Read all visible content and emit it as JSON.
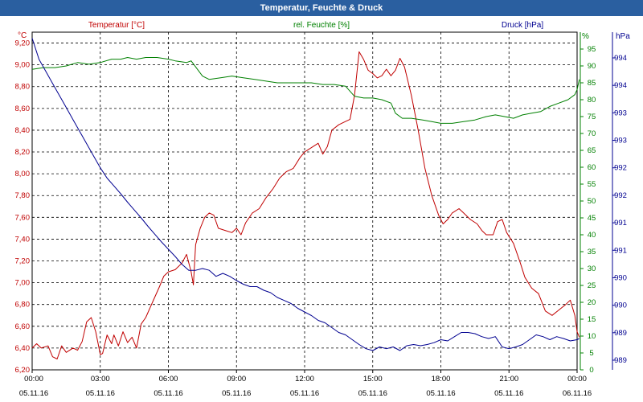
{
  "window": {
    "title": "Temperatur, Feuchte & Druck"
  },
  "colors": {
    "temperature": "#c00000",
    "humidity": "#008000",
    "pressure": "#000090",
    "title_bg": "#2a5fa0",
    "grid": "#000000"
  },
  "chart_data": {
    "type": "line",
    "title": "Temperatur, Feuchte & Druck",
    "x_ticks": [
      {
        "time": "00:00",
        "date": "05.11.16"
      },
      {
        "time": "03:00",
        "date": "05.11.16"
      },
      {
        "time": "06:00",
        "date": "05.11.16"
      },
      {
        "time": "09:00",
        "date": "05.11.16"
      },
      {
        "time": "12:00",
        "date": "05.11.16"
      },
      {
        "time": "15:00",
        "date": "05.11.16"
      },
      {
        "time": "18:00",
        "date": "05.11.16"
      },
      {
        "time": "21:00",
        "date": "05.11.16"
      },
      {
        "time": "00:00",
        "date": "06.11.16"
      }
    ],
    "x_range_hours": [
      0,
      24
    ],
    "axes": {
      "temperature": {
        "label": "Temperatur [°C]",
        "unit": "°C",
        "range": [
          6.2,
          9.3
        ],
        "ticks": [
          "9,20",
          "9,00",
          "8,80",
          "8,60",
          "8,40",
          "8,20",
          "8,00",
          "7,80",
          "7,60",
          "7,40",
          "7,20",
          "7,00",
          "6,80",
          "6,60",
          "6,40",
          "6,20"
        ]
      },
      "humidity": {
        "label": "rel. Feuchte [%]",
        "unit": "%",
        "range": [
          0,
          100
        ],
        "ticks": [
          "95",
          "90",
          "85",
          "80",
          "75",
          "70",
          "65",
          "60",
          "55",
          "50",
          "45",
          "40",
          "35",
          "30",
          "25",
          "20",
          "15",
          "10",
          "5",
          "0"
        ]
      },
      "pressure": {
        "label": "Druck [hPa]",
        "unit": "hPa",
        "ticks": [
          "994",
          "994",
          "993",
          "993",
          "992",
          "992",
          "991",
          "991",
          "990",
          "990",
          "989",
          "989"
        ]
      }
    },
    "grid": true,
    "series": [
      {
        "name": "Temperatur [°C]",
        "axis": "temperature",
        "points": [
          [
            0,
            6.4
          ],
          [
            0.2,
            6.44
          ],
          [
            0.4,
            6.4
          ],
          [
            0.7,
            6.42
          ],
          [
            0.9,
            6.32
          ],
          [
            1.1,
            6.3
          ],
          [
            1.3,
            6.42
          ],
          [
            1.5,
            6.36
          ],
          [
            1.8,
            6.4
          ],
          [
            2.0,
            6.38
          ],
          [
            2.2,
            6.46
          ],
          [
            2.4,
            6.64
          ],
          [
            2.6,
            6.68
          ],
          [
            2.8,
            6.55
          ],
          [
            3.0,
            6.34
          ],
          [
            3.1,
            6.35
          ],
          [
            3.3,
            6.52
          ],
          [
            3.5,
            6.44
          ],
          [
            3.6,
            6.52
          ],
          [
            3.8,
            6.42
          ],
          [
            4.0,
            6.55
          ],
          [
            4.2,
            6.45
          ],
          [
            4.4,
            6.5
          ],
          [
            4.6,
            6.4
          ],
          [
            4.8,
            6.62
          ],
          [
            5.0,
            6.68
          ],
          [
            5.3,
            6.82
          ],
          [
            5.6,
            6.96
          ],
          [
            5.8,
            7.06
          ],
          [
            6.0,
            7.1
          ],
          [
            6.3,
            7.12
          ],
          [
            6.6,
            7.18
          ],
          [
            6.8,
            7.26
          ],
          [
            7.0,
            7.1
          ],
          [
            7.1,
            6.98
          ],
          [
            7.2,
            7.35
          ],
          [
            7.4,
            7.5
          ],
          [
            7.6,
            7.6
          ],
          [
            7.8,
            7.64
          ],
          [
            8.0,
            7.62
          ],
          [
            8.2,
            7.5
          ],
          [
            8.5,
            7.48
          ],
          [
            8.8,
            7.46
          ],
          [
            9.0,
            7.5
          ],
          [
            9.2,
            7.44
          ],
          [
            9.4,
            7.55
          ],
          [
            9.7,
            7.64
          ],
          [
            10.0,
            7.68
          ],
          [
            10.3,
            7.78
          ],
          [
            10.6,
            7.86
          ],
          [
            10.9,
            7.96
          ],
          [
            11.2,
            8.02
          ],
          [
            11.5,
            8.05
          ],
          [
            11.8,
            8.15
          ],
          [
            12.0,
            8.2
          ],
          [
            12.3,
            8.24
          ],
          [
            12.6,
            8.28
          ],
          [
            12.8,
            8.18
          ],
          [
            13.0,
            8.25
          ],
          [
            13.2,
            8.4
          ],
          [
            13.5,
            8.45
          ],
          [
            13.8,
            8.48
          ],
          [
            14.0,
            8.5
          ],
          [
            14.2,
            8.72
          ],
          [
            14.4,
            9.12
          ],
          [
            14.6,
            9.05
          ],
          [
            14.8,
            8.95
          ],
          [
            15.0,
            8.92
          ],
          [
            15.2,
            8.88
          ],
          [
            15.4,
            8.9
          ],
          [
            15.6,
            8.96
          ],
          [
            15.8,
            8.9
          ],
          [
            16.0,
            8.95
          ],
          [
            16.2,
            9.06
          ],
          [
            16.4,
            8.98
          ],
          [
            16.7,
            8.72
          ],
          [
            17.0,
            8.4
          ],
          [
            17.3,
            8.05
          ],
          [
            17.6,
            7.8
          ],
          [
            17.9,
            7.62
          ],
          [
            18.1,
            7.54
          ],
          [
            18.3,
            7.58
          ],
          [
            18.5,
            7.64
          ],
          [
            18.8,
            7.68
          ],
          [
            19.0,
            7.64
          ],
          [
            19.3,
            7.58
          ],
          [
            19.6,
            7.54
          ],
          [
            19.8,
            7.48
          ],
          [
            20.0,
            7.44
          ],
          [
            20.3,
            7.44
          ],
          [
            20.5,
            7.56
          ],
          [
            20.7,
            7.58
          ],
          [
            20.9,
            7.46
          ],
          [
            21.2,
            7.36
          ],
          [
            21.5,
            7.18
          ],
          [
            21.7,
            7.05
          ],
          [
            22.0,
            6.95
          ],
          [
            22.3,
            6.9
          ],
          [
            22.6,
            6.74
          ],
          [
            22.9,
            6.7
          ],
          [
            23.2,
            6.75
          ],
          [
            23.5,
            6.8
          ],
          [
            23.7,
            6.84
          ],
          [
            23.9,
            6.7
          ],
          [
            24.0,
            6.55
          ],
          [
            24.1,
            6.5
          ]
        ]
      },
      {
        "name": "rel. Feuchte [%]",
        "axis": "humidity",
        "points": [
          [
            0,
            89
          ],
          [
            0.5,
            89.5
          ],
          [
            1.0,
            89.5
          ],
          [
            1.5,
            90
          ],
          [
            2.0,
            91
          ],
          [
            2.5,
            90.5
          ],
          [
            3.0,
            91
          ],
          [
            3.5,
            92
          ],
          [
            3.9,
            92
          ],
          [
            4.2,
            92.5
          ],
          [
            4.6,
            92
          ],
          [
            5.0,
            92.5
          ],
          [
            5.5,
            92.5
          ],
          [
            6.0,
            92
          ],
          [
            6.3,
            91.5
          ],
          [
            6.8,
            91
          ],
          [
            7.0,
            91.5
          ],
          [
            7.5,
            87
          ],
          [
            7.8,
            86
          ],
          [
            8.3,
            86.5
          ],
          [
            8.8,
            87
          ],
          [
            9.3,
            86.5
          ],
          [
            9.8,
            86
          ],
          [
            10.3,
            85.5
          ],
          [
            10.8,
            85
          ],
          [
            11.3,
            85
          ],
          [
            11.8,
            85
          ],
          [
            12.3,
            85
          ],
          [
            12.8,
            84.5
          ],
          [
            13.3,
            84.5
          ],
          [
            13.8,
            84
          ],
          [
            14.2,
            81
          ],
          [
            14.6,
            80.5
          ],
          [
            15.0,
            80.5
          ],
          [
            15.4,
            80
          ],
          [
            15.8,
            79
          ],
          [
            16.0,
            76
          ],
          [
            16.3,
            74.5
          ],
          [
            16.7,
            74.5
          ],
          [
            17.2,
            74
          ],
          [
            17.6,
            73.5
          ],
          [
            18.0,
            73
          ],
          [
            18.5,
            73
          ],
          [
            19.0,
            73.5
          ],
          [
            19.5,
            74
          ],
          [
            20.0,
            75
          ],
          [
            20.4,
            75.5
          ],
          [
            20.8,
            75
          ],
          [
            21.2,
            74.5
          ],
          [
            21.6,
            75.5
          ],
          [
            22.0,
            76
          ],
          [
            22.4,
            76.5
          ],
          [
            22.8,
            78
          ],
          [
            23.2,
            79
          ],
          [
            23.6,
            80
          ],
          [
            23.9,
            81.5
          ],
          [
            24.0,
            83
          ],
          [
            24.1,
            86
          ]
        ]
      },
      {
        "name": "Druck [hPa]",
        "axis": "pressure",
        "range": [
          988.8,
          994.4
        ],
        "points": [
          [
            0,
            994.3
          ],
          [
            0.3,
            993.95
          ],
          [
            0.6,
            993.75
          ],
          [
            0.9,
            993.55
          ],
          [
            1.2,
            993.35
          ],
          [
            1.5,
            993.15
          ],
          [
            1.8,
            992.95
          ],
          [
            2.1,
            992.75
          ],
          [
            2.4,
            992.55
          ],
          [
            2.7,
            992.35
          ],
          [
            3.0,
            992.15
          ],
          [
            3.3,
            991.98
          ],
          [
            3.6,
            991.85
          ],
          [
            3.9,
            991.72
          ],
          [
            4.2,
            991.58
          ],
          [
            4.5,
            991.45
          ],
          [
            4.8,
            991.32
          ],
          [
            5.1,
            991.18
          ],
          [
            5.4,
            991.05
          ],
          [
            5.7,
            990.92
          ],
          [
            6.0,
            990.8
          ],
          [
            6.3,
            990.68
          ],
          [
            6.6,
            990.55
          ],
          [
            6.9,
            990.45
          ],
          [
            7.2,
            990.45
          ],
          [
            7.5,
            990.48
          ],
          [
            7.8,
            990.45
          ],
          [
            8.1,
            990.35
          ],
          [
            8.4,
            990.4
          ],
          [
            8.7,
            990.35
          ],
          [
            9.0,
            990.28
          ],
          [
            9.3,
            990.22
          ],
          [
            9.6,
            990.18
          ],
          [
            9.9,
            990.18
          ],
          [
            10.2,
            990.12
          ],
          [
            10.5,
            990.08
          ],
          [
            10.8,
            990.0
          ],
          [
            11.1,
            989.95
          ],
          [
            11.4,
            989.9
          ],
          [
            11.7,
            989.82
          ],
          [
            12.0,
            989.76
          ],
          [
            12.3,
            989.7
          ],
          [
            12.6,
            989.62
          ],
          [
            12.9,
            989.58
          ],
          [
            13.2,
            989.5
          ],
          [
            13.5,
            989.42
          ],
          [
            13.8,
            989.38
          ],
          [
            14.1,
            989.3
          ],
          [
            14.4,
            989.22
          ],
          [
            14.7,
            989.15
          ],
          [
            15.0,
            989.12
          ],
          [
            15.3,
            989.18
          ],
          [
            15.6,
            989.15
          ],
          [
            15.9,
            989.18
          ],
          [
            16.2,
            989.12
          ],
          [
            16.5,
            989.2
          ],
          [
            16.8,
            989.22
          ],
          [
            17.1,
            989.2
          ],
          [
            17.4,
            989.22
          ],
          [
            17.7,
            989.25
          ],
          [
            18.0,
            989.3
          ],
          [
            18.3,
            989.28
          ],
          [
            18.6,
            989.35
          ],
          [
            18.9,
            989.42
          ],
          [
            19.2,
            989.42
          ],
          [
            19.5,
            989.4
          ],
          [
            19.8,
            989.35
          ],
          [
            20.1,
            989.32
          ],
          [
            20.4,
            989.35
          ],
          [
            20.7,
            989.18
          ],
          [
            21.0,
            989.15
          ],
          [
            21.3,
            989.18
          ],
          [
            21.6,
            989.22
          ],
          [
            21.9,
            989.3
          ],
          [
            22.2,
            989.38
          ],
          [
            22.5,
            989.35
          ],
          [
            22.8,
            989.3
          ],
          [
            23.1,
            989.35
          ],
          [
            23.4,
            989.32
          ],
          [
            23.7,
            989.28
          ],
          [
            24.0,
            989.3
          ],
          [
            24.1,
            989.32
          ]
        ]
      }
    ]
  }
}
